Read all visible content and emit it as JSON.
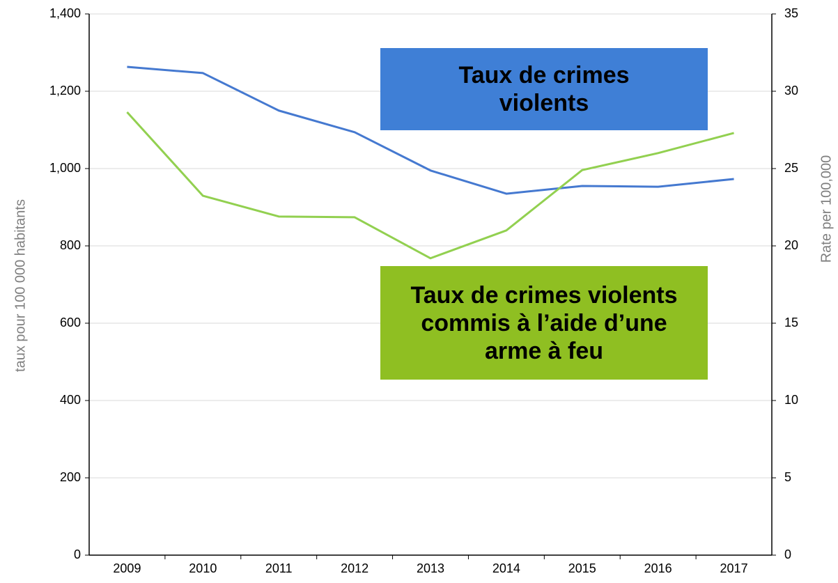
{
  "chart_data": {
    "type": "line",
    "categories": [
      "2009",
      "2010",
      "2011",
      "2012",
      "2013",
      "2014",
      "2015",
      "2016",
      "2017"
    ],
    "series": [
      {
        "name": "Taux de crimes violents",
        "color": "#4579d0",
        "box_color": "#3f7fd6",
        "values": [
          1263,
          1247,
          1150,
          1094,
          995,
          935,
          955,
          953,
          973
        ]
      },
      {
        "name": "Taux de crimes violents commis à l’aide d’une arme à feu",
        "color": "#92d050",
        "box_color": "#8fbf22",
        "axis": "y2",
        "values": [
          28.65,
          23.24,
          21.9,
          21.85,
          19.2,
          21.0,
          24.9,
          26.0,
          27.3
        ]
      }
    ],
    "y_label": "taux pour 100 000 habitants",
    "y2_label": "Rate per 100,000",
    "ylim": [
      0,
      1400
    ],
    "yticks": [
      0,
      200,
      400,
      600,
      800,
      {
        "value": 1000,
        "label": "1,000"
      },
      {
        "value": 1200,
        "label": "1,200"
      },
      {
        "value": 1400,
        "label": "1,400"
      }
    ],
    "y2lim": [
      0,
      35
    ],
    "y2ticks": [
      0,
      5,
      10,
      15,
      20,
      25,
      30,
      35
    ],
    "grid": true
  }
}
